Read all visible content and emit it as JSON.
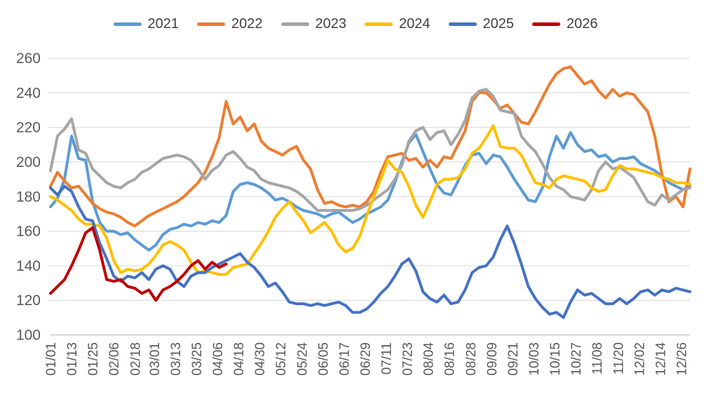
{
  "chart_data": {
    "type": "line",
    "title": "",
    "legend_position": "top",
    "grid": true,
    "x_axis": {
      "label": "",
      "tick_labels": [
        "01/01",
        "01/13",
        "01/25",
        "02/06",
        "02/18",
        "03/01",
        "03/13",
        "03/25",
        "04/06",
        "04/18",
        "04/30",
        "05/12",
        "05/24",
        "06/05",
        "06/17",
        "06/29",
        "07/11",
        "07/23",
        "08/04",
        "08/16",
        "08/28",
        "09/09",
        "09/21",
        "10/03",
        "10/15",
        "10/27",
        "11/08",
        "11/20",
        "12/02",
        "12/14",
        "12/26"
      ],
      "tick_days": [
        1,
        13,
        25,
        37,
        49,
        60,
        72,
        84,
        96,
        108,
        120,
        132,
        144,
        156,
        168,
        180,
        192,
        204,
        216,
        228,
        240,
        252,
        264,
        276,
        288,
        300,
        312,
        324,
        336,
        348,
        360
      ]
    },
    "y_axis": {
      "label": "",
      "min": 100,
      "max": 260,
      "step": 20,
      "tick_values": [
        100,
        120,
        140,
        160,
        180,
        200,
        220,
        240,
        260
      ]
    },
    "days": [
      1,
      5,
      9,
      13,
      17,
      21,
      25,
      29,
      33,
      37,
      41,
      45,
      49,
      53,
      57,
      61,
      65,
      69,
      73,
      77,
      81,
      85,
      89,
      93,
      97,
      101,
      105,
      109,
      113,
      117,
      121,
      125,
      129,
      133,
      137,
      141,
      145,
      149,
      153,
      157,
      161,
      165,
      169,
      173,
      177,
      181,
      185,
      189,
      193,
      197,
      201,
      205,
      209,
      213,
      217,
      221,
      225,
      229,
      233,
      237,
      241,
      245,
      249,
      253,
      257,
      261,
      265,
      269,
      273,
      277,
      281,
      285,
      289,
      293,
      297,
      301,
      305,
      309,
      313,
      317,
      321,
      325,
      329,
      333,
      337,
      341,
      345,
      349,
      353,
      357,
      361,
      365
    ],
    "series": [
      {
        "name": "2021",
        "color": "#5B9BD5",
        "values": [
          174,
          179,
          190,
          215,
          202,
          201,
          177,
          165,
          160,
          160,
          158,
          159,
          155,
          152,
          149,
          152,
          158,
          161,
          162,
          164,
          163,
          165,
          164,
          166,
          165,
          169,
          183,
          187,
          188,
          187,
          185,
          182,
          178,
          179,
          177,
          174,
          172,
          171,
          170,
          168,
          170,
          171,
          168,
          165,
          167,
          170,
          172,
          174,
          178,
          188,
          200,
          211,
          216,
          206,
          196,
          187,
          182,
          181,
          189,
          198,
          204,
          205,
          199,
          204,
          203,
          197,
          190,
          184,
          178,
          177,
          185,
          203,
          215,
          208,
          217,
          210,
          206,
          207,
          203,
          204,
          200,
          202,
          202,
          203,
          199,
          197,
          195,
          192,
          188,
          186,
          184,
          186
        ]
      },
      {
        "name": "2022",
        "color": "#ED7D31",
        "values": [
          186,
          194,
          189,
          185,
          186,
          181,
          176,
          173,
          171,
          170,
          168,
          165,
          163,
          166,
          169,
          171,
          173,
          175,
          177,
          180,
          184,
          188,
          194,
          203,
          214,
          235,
          222,
          226,
          218,
          222,
          212,
          208,
          206,
          204,
          207,
          209,
          201,
          196,
          184,
          176,
          177,
          175,
          174,
          175,
          174,
          177,
          183,
          194,
          203,
          204,
          205,
          201,
          202,
          197,
          201,
          197,
          203,
          202,
          210,
          218,
          235,
          240,
          240,
          236,
          231,
          233,
          228,
          223,
          222,
          229,
          237,
          245,
          251,
          254,
          255,
          250,
          245,
          247,
          241,
          237,
          242,
          238,
          240,
          239,
          234,
          229,
          215,
          193,
          177,
          180,
          174,
          196
        ]
      },
      {
        "name": "2023",
        "color": "#A5A5A5",
        "values": [
          195,
          215,
          219,
          225,
          207,
          205,
          196,
          192,
          188,
          186,
          185,
          188,
          190,
          194,
          196,
          199,
          202,
          203,
          204,
          203,
          201,
          196,
          190,
          195,
          198,
          204,
          206,
          202,
          197,
          195,
          190,
          188,
          187,
          186,
          185,
          183,
          180,
          176,
          172,
          172,
          172,
          172,
          172,
          172,
          173,
          175,
          178,
          181,
          184,
          190,
          198,
          212,
          218,
          220,
          213,
          217,
          218,
          210,
          216,
          224,
          237,
          241,
          242,
          238,
          230,
          229,
          228,
          215,
          210,
          206,
          199,
          191,
          186,
          184,
          180,
          179,
          178,
          184,
          195,
          200,
          196,
          197,
          194,
          191,
          184,
          177,
          175,
          181,
          178,
          181,
          184,
          185
        ]
      },
      {
        "name": "2024",
        "color": "#FFC000",
        "values": [
          180,
          178,
          175,
          172,
          167,
          164,
          164,
          163,
          156,
          143,
          136,
          138,
          137,
          138,
          141,
          146,
          152,
          154,
          152,
          149,
          142,
          136,
          137,
          136,
          135,
          135,
          139,
          140,
          141,
          147,
          153,
          160,
          168,
          173,
          177,
          171,
          166,
          159,
          162,
          165,
          160,
          152,
          148,
          150,
          157,
          169,
          180,
          190,
          201,
          196,
          194,
          186,
          175,
          168,
          177,
          187,
          190,
          190,
          191,
          196,
          205,
          208,
          214,
          221,
          209,
          208,
          208,
          204,
          196,
          188,
          187,
          185,
          190,
          192,
          191,
          190,
          189,
          185,
          183,
          184,
          192,
          198,
          196,
          196,
          195,
          194,
          193,
          191,
          190,
          188,
          188,
          187
        ]
      },
      {
        "name": "2025",
        "color": "#4472C4",
        "values": [
          185,
          181,
          186,
          183,
          174,
          167,
          166,
          153,
          144,
          134,
          131,
          134,
          133,
          136,
          132,
          138,
          140,
          138,
          131,
          128,
          134,
          136,
          136,
          139,
          141,
          143,
          145,
          147,
          142,
          139,
          134,
          128,
          130,
          125,
          119,
          118,
          118,
          117,
          118,
          117,
          118,
          119,
          117,
          113,
          113,
          115,
          119,
          124,
          128,
          134,
          141,
          144,
          137,
          125,
          121,
          119,
          123,
          118,
          119,
          126,
          136,
          139,
          140,
          145,
          155,
          163,
          153,
          141,
          128,
          121,
          116,
          112,
          113,
          110,
          119,
          126,
          123,
          124,
          121,
          118,
          118,
          121,
          118,
          121,
          125,
          126,
          123,
          126,
          125,
          127,
          126,
          125
        ]
      },
      {
        "name": "2026",
        "color": "#C00000",
        "values": [
          124,
          128,
          132,
          140,
          149,
          159,
          162,
          149,
          132,
          131,
          132,
          128,
          127,
          124,
          126,
          120,
          126,
          128,
          131,
          135,
          140,
          143,
          138,
          142,
          139,
          141,
          null,
          null,
          null,
          null,
          null,
          null,
          null,
          null,
          null,
          null,
          null,
          null,
          null,
          null,
          null,
          null,
          null,
          null,
          null,
          null,
          null,
          null,
          null,
          null,
          null,
          null,
          null,
          null,
          null,
          null,
          null,
          null,
          null,
          null,
          null,
          null,
          null,
          null,
          null,
          null,
          null,
          null,
          null,
          null,
          null,
          null,
          null,
          null,
          null,
          null,
          null,
          null,
          null,
          null,
          null,
          null,
          null,
          null,
          null,
          null,
          null,
          null,
          null,
          null,
          null,
          null
        ]
      }
    ]
  },
  "styles": {
    "background": "#FFFFFF",
    "grid_color": "#D9D9D9",
    "axis_line_color": "#BFBFBF",
    "axis_text_color": "#595959",
    "legend_text_color": "#404040"
  }
}
